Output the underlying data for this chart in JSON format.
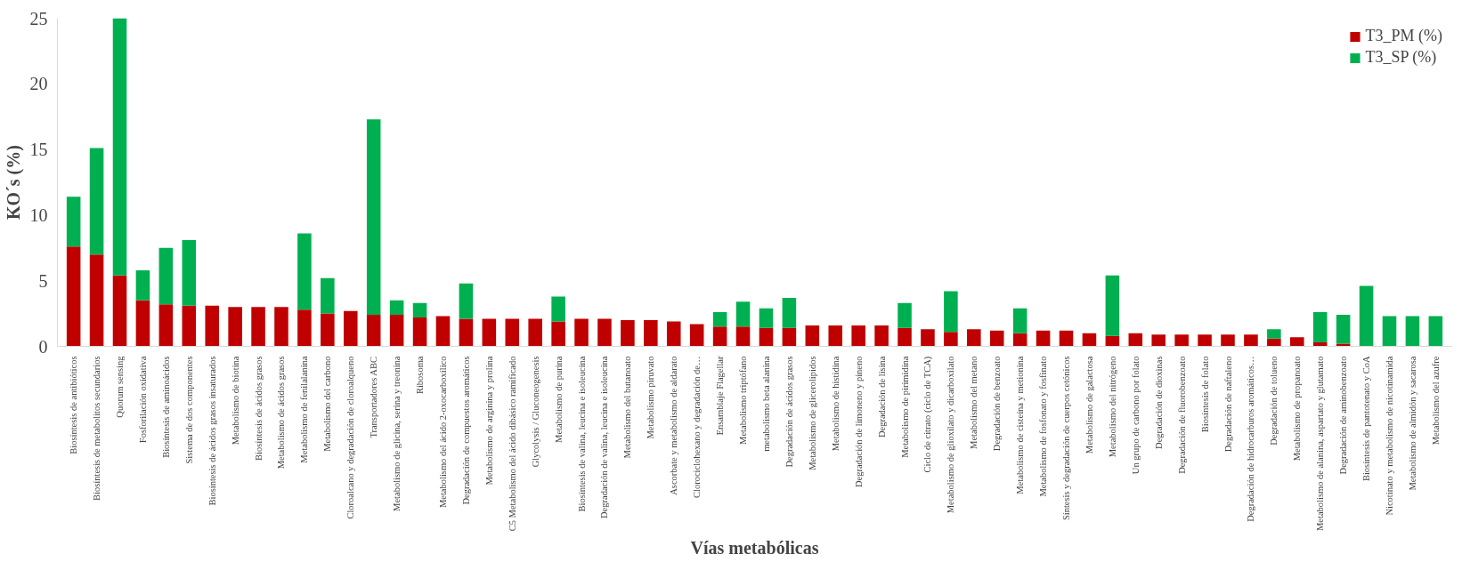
{
  "chart_data": {
    "type": "bar",
    "stacked": true,
    "xlabel": "Vías metabólicas",
    "ylabel": "KO´s (%)",
    "categories": [
      "Biosíntesis de antibióticos",
      "Biosíntesis de metabolitos secundarios",
      "Quorum sensing",
      "Fosforilación oxidativa",
      "Biosíntesis de aminoácidos",
      "Sistema de dos componentes",
      "Biosíntesis de ácidos grasos insaturados",
      "Metabolismo de biotina",
      "Biosíntesis de ácidos grasos",
      "Metabolismo de ácidos grasos",
      "Metabolismo de fenilalanina",
      "Metabolismo del carbono",
      "Cloroalcano y degradación de cloroalqueno",
      "Transportadores ABC",
      "Metabolismo de glicina, serina y treonina",
      "Ribosoma",
      "Metabolismo del ácido 2-oxocarboxílico",
      "Degradación de compuestos aromáticos",
      "Metabolismo de arginina y prolina",
      "C5 Metabolismo del ácido dibásico ramificado",
      "Glycolysis / Gluconeogenesis",
      "Metabolismo de purina",
      "Biosíntesis de valina, leucina e isoleucina",
      "Degradación de valina, leucina e isoleucina",
      "Metabolismo del butanoato",
      "Metabolismo piruvato",
      "Ascorbate y metabolismo de aldarato",
      "Clorociclohexano y degradación de…",
      "Ensamblaje Flagellar",
      "Metabolismo triptófano",
      "metabolismo beta alanina",
      "Degradación de ácidos grasos",
      "Metabolismo de glicerolípidos",
      "Metabolismo de histidina",
      "Degradación de limoneno y pineno",
      "Degradación de lisina",
      "Metabolismo de pirimidina",
      "Ciclo de citrato (ciclo de TCA)",
      "Metabolismo de glioxilato y dicarboxilato",
      "Metabolismo del metano",
      "Degradación de benzoato",
      "Metabolismo de cisteína y metionina",
      "Metabolismo de fosfonato y fosfinato",
      "Síntesis y degradación de cuerpos cetónicos",
      "Metabolismo de galactosa",
      "Metabolismo del nitrógeno",
      "Un grupo de carbono por folato",
      "Degradación de dioxinas",
      "Degradación de fluorobenzoato",
      "Biosíntesis de folato",
      "Degradación de naftaleno",
      "Degradación de hidrocarburos aromáticos…",
      "Degradación de tolueno",
      "Metabolismo de propanoato",
      "Metabolismo de alanina, aspartato y glutamato",
      "Degradación de aminobenzoato",
      "Biosíntesis de pantotenato y CoA",
      "Nicotinato y metabolismo de nicotinamida",
      "Metabolismo de almidón y sacarosa",
      "Metabolismo del azufre"
    ],
    "series": [
      {
        "name": "T3_PM (%)",
        "color": "#c00000",
        "values": [
          7.6,
          7.0,
          5.4,
          3.5,
          3.2,
          3.1,
          3.1,
          3.0,
          3.0,
          3.0,
          2.8,
          2.5,
          2.7,
          2.4,
          2.4,
          2.2,
          2.3,
          2.1,
          2.1,
          2.1,
          2.1,
          1.9,
          2.1,
          2.1,
          2.0,
          2.0,
          1.9,
          1.7,
          1.5,
          1.5,
          1.4,
          1.4,
          1.6,
          1.6,
          1.6,
          1.6,
          1.4,
          1.3,
          1.1,
          1.3,
          1.2,
          1.0,
          1.2,
          1.2,
          1.0,
          0.8,
          1.0,
          0.9,
          0.9,
          0.9,
          0.9,
          0.9,
          0.6,
          0.7,
          0.3,
          0.2,
          0,
          0,
          0,
          0
        ]
      },
      {
        "name": "T3_SP (%)",
        "color": "#00b050",
        "values": [
          3.8,
          8.1,
          19.7,
          2.3,
          4.3,
          5.0,
          0,
          0,
          0,
          0,
          5.8,
          2.7,
          0,
          14.9,
          1.1,
          1.1,
          0,
          2.7,
          0,
          0,
          0,
          1.9,
          0,
          0,
          0,
          0,
          0,
          0,
          1.1,
          1.9,
          1.5,
          2.3,
          0,
          0,
          0,
          0,
          1.9,
          0,
          3.1,
          0,
          0,
          1.9,
          0,
          0,
          0,
          4.6,
          0,
          0,
          0,
          0,
          0,
          0,
          0.7,
          0,
          2.3,
          2.2,
          4.6,
          2.3,
          2.3,
          2.3
        ]
      }
    ],
    "ylim": [
      0,
      25
    ],
    "yticks": [
      0,
      5,
      10,
      15,
      20,
      25
    ],
    "grid": false,
    "legend": "top right"
  }
}
